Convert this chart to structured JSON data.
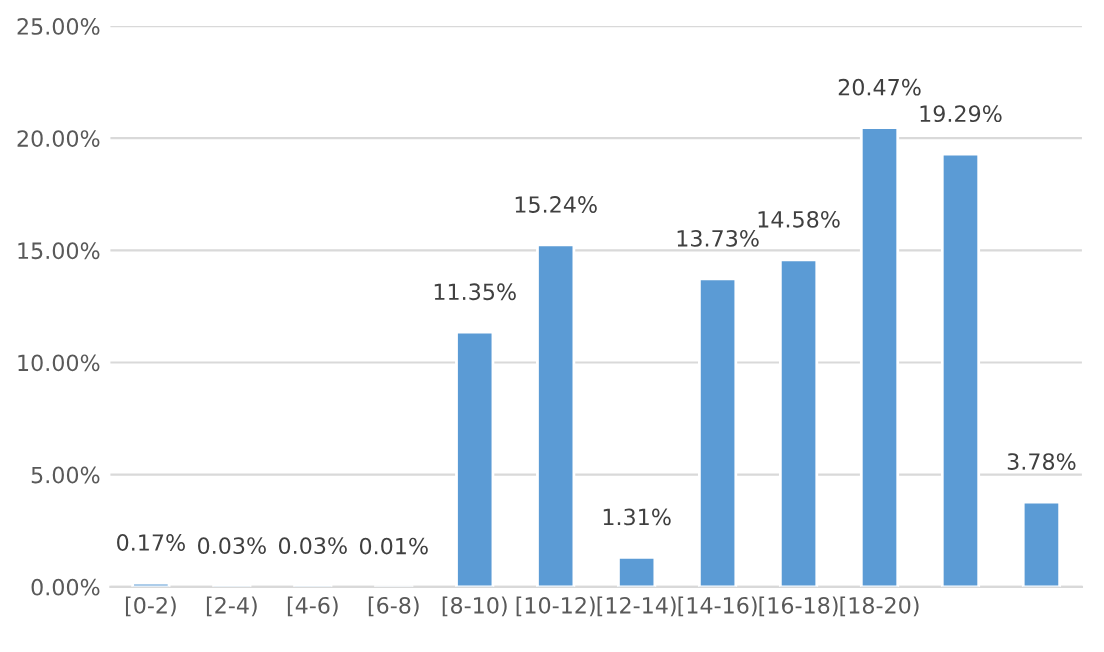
{
  "chart_data": {
    "type": "bar",
    "categories": [
      "[0-2)",
      "[2-4)",
      "[4-6)",
      "[6-8)",
      "[8-10)",
      "[10-12)",
      "[12-14)",
      "[14-16)",
      "[16-18)",
      "[18-20)",
      null,
      null
    ],
    "series": [
      {
        "color": "#5b9bd5",
        "values": [
          0.17,
          0.03,
          0.03,
          0.01,
          11.35,
          15.24,
          1.31,
          13.73,
          14.58,
          20.47,
          19.29,
          3.78
        ],
        "value_labels": [
          "0.17%",
          "0.03%",
          "0.03%",
          "0.01%",
          "11.35%",
          "15.24%",
          "1.31%",
          "13.73%",
          "14.58%",
          "20.47%",
          "19.29%",
          "3.78%"
        ]
      }
    ],
    "ylim": [
      0,
      25
    ],
    "yticks": [
      {
        "value": 0,
        "label": "0.00%"
      },
      {
        "value": 5,
        "label": "5.00%"
      },
      {
        "value": 10,
        "label": "10.00%"
      },
      {
        "value": 15,
        "label": "15.00%"
      },
      {
        "value": 20,
        "label": "20.00%"
      },
      {
        "value": 25,
        "label": "25.00%"
      }
    ],
    "grid": "y",
    "legend": false
  }
}
